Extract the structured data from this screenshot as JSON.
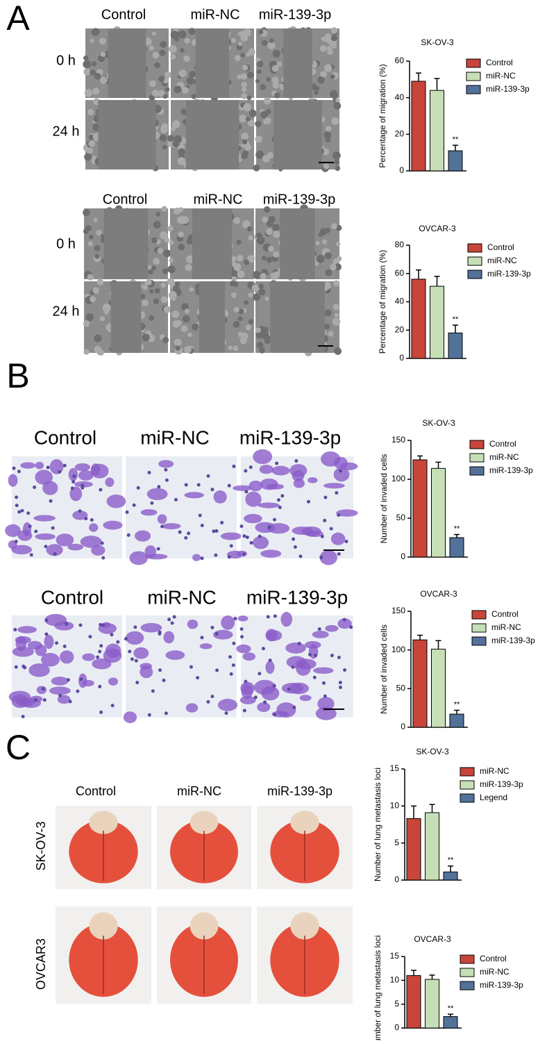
{
  "panel_a": {
    "letter": "A",
    "blocks": [
      {
        "columns": [
          "Control",
          "miR-NC",
          "miR-139-3p"
        ],
        "rows": [
          "0 h",
          "24 h"
        ]
      },
      {
        "columns": [
          "Control",
          "miR-NC",
          "miR-139-3p"
        ],
        "rows": [
          "0 h",
          "24 h"
        ]
      }
    ]
  },
  "panel_b": {
    "letter": "B",
    "blocks": [
      {
        "columns": [
          "Control",
          "miR-NC",
          "miR-139-3p"
        ]
      },
      {
        "columns": [
          "Control",
          "miR-NC",
          "miR-139-3p"
        ]
      }
    ]
  },
  "panel_c": {
    "letter": "C",
    "columns": [
      "Control",
      "miR-NC",
      "miR-139-3p"
    ],
    "rows": [
      "SK-OV-3",
      "OVCAR3"
    ]
  },
  "chart_data": [
    {
      "type": "bar",
      "title": "SK-OV-3",
      "ylabel": "Percentage of migration (%)",
      "ylim": [
        0,
        60
      ],
      "yticks": [
        0,
        20,
        40,
        60
      ],
      "series": [
        {
          "name": "Control",
          "color": "#c8453a",
          "values": [
            49
          ],
          "errors": [
            4.5
          ]
        },
        {
          "name": "miR-NC",
          "color": "#c6dfb6",
          "values": [
            44
          ],
          "errors": [
            6.5
          ]
        },
        {
          "name": "miR-139-3p",
          "color": "#52729a",
          "values": [
            11
          ],
          "errors": [
            3
          ],
          "annotation": "**"
        }
      ]
    },
    {
      "type": "bar",
      "title": "OVCAR-3",
      "ylabel": "Percentage of migration (%)",
      "ylim": [
        0,
        80
      ],
      "yticks": [
        0,
        20,
        40,
        60,
        80
      ],
      "series": [
        {
          "name": "Control",
          "color": "#c8453a",
          "values": [
            56
          ],
          "errors": [
            6.5
          ]
        },
        {
          "name": "miR-NC",
          "color": "#c6dfb6",
          "values": [
            51
          ],
          "errors": [
            7
          ]
        },
        {
          "name": "miR-139-3p",
          "color": "#52729a",
          "values": [
            18
          ],
          "errors": [
            5.5
          ],
          "annotation": "**"
        }
      ]
    },
    {
      "type": "bar",
      "title": "SK-OV-3",
      "ylabel": "Number of invaded cells",
      "ylim": [
        0,
        150
      ],
      "yticks": [
        0,
        50,
        100,
        150
      ],
      "series": [
        {
          "name": "Control",
          "color": "#c8453a",
          "values": [
            125
          ],
          "errors": [
            5
          ]
        },
        {
          "name": "miR-NC",
          "color": "#c6dfb6",
          "values": [
            114
          ],
          "errors": [
            8
          ]
        },
        {
          "name": "miR-139-3p",
          "color": "#52729a",
          "values": [
            25
          ],
          "errors": [
            4
          ],
          "annotation": "**"
        }
      ]
    },
    {
      "type": "bar",
      "title": "OVCAR-3",
      "ylabel": "Number of invaded cells",
      "ylim": [
        0,
        150
      ],
      "yticks": [
        0,
        50,
        100,
        150
      ],
      "series": [
        {
          "name": "Control",
          "color": "#c8453a",
          "values": [
            113
          ],
          "errors": [
            6
          ]
        },
        {
          "name": "miR-NC",
          "color": "#c6dfb6",
          "values": [
            101
          ],
          "errors": [
            11
          ]
        },
        {
          "name": "miR-139-3p",
          "color": "#52729a",
          "values": [
            17
          ],
          "errors": [
            5
          ],
          "annotation": "**"
        }
      ]
    },
    {
      "type": "bar",
      "title": "SK-OV-3",
      "ylabel": "Number of lung metastasis loci",
      "ylim": [
        0,
        15
      ],
      "yticks": [
        0,
        5,
        10,
        15
      ],
      "series": [
        {
          "name": "miR-NC",
          "color": "#c8453a",
          "values": [
            8.3
          ],
          "errors": [
            1.7
          ]
        },
        {
          "name": "miR-139-3p",
          "color": "#c6dfb6",
          "values": [
            9.1
          ],
          "errors": [
            1.1
          ]
        },
        {
          "name": "Legend",
          "color": "#52729a",
          "values": [
            1.1
          ],
          "errors": [
            0.8
          ],
          "annotation": "**"
        }
      ]
    },
    {
      "type": "bar",
      "title": "OVCAR-3",
      "ylabel": "Number of lung metastasis loci",
      "ylim": [
        0,
        15
      ],
      "yticks": [
        0,
        5,
        10,
        15
      ],
      "series": [
        {
          "name": "Control",
          "color": "#c8453a",
          "values": [
            11
          ],
          "errors": [
            1.1
          ]
        },
        {
          "name": "miR-NC",
          "color": "#c6dfb6",
          "values": [
            10.2
          ],
          "errors": [
            0.9
          ]
        },
        {
          "name": "miR-139-3p",
          "color": "#52729a",
          "values": [
            2.4
          ],
          "errors": [
            0.5
          ],
          "annotation": "**"
        }
      ]
    }
  ]
}
